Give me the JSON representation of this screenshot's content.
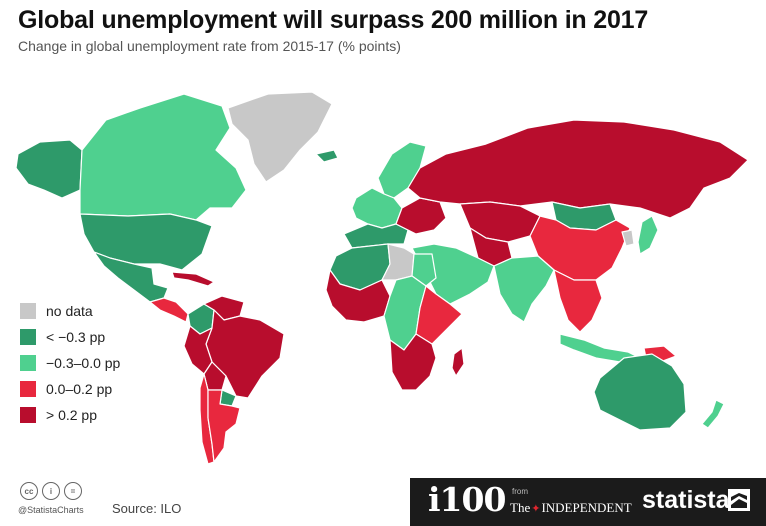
{
  "header": {
    "title": "Global unemployment will surpass 200 million in 2017",
    "subtitle": "Change in global unemployment rate from 2015-17 (% points)"
  },
  "colors": {
    "no_data": "#c8c8c8",
    "lt_neg_0_3": "#2e9a6a",
    "neg_0_3_to_0": "#4fd08f",
    "zero_to_0_2": "#e8283e",
    "gt_0_2": "#b80d2d",
    "ocean": "#ffffff",
    "border": "#ffffff"
  },
  "legend": {
    "items": [
      {
        "label": "no data",
        "color": "#c8c8c8"
      },
      {
        "label": "< −0.3 pp",
        "color": "#2e9a6a"
      },
      {
        "label": "−0.3–0.0 pp",
        "color": "#4fd08f"
      },
      {
        "label": "0.0–0.2 pp",
        "color": "#e8283e"
      },
      {
        "label": "> 0.2 pp",
        "color": "#b80d2d"
      }
    ]
  },
  "regions": [
    {
      "name": "Greenland",
      "category": "no data"
    },
    {
      "name": "Alaska",
      "category": "< −0.3 pp"
    },
    {
      "name": "Canada",
      "category": "−0.3–0.0 pp"
    },
    {
      "name": "United States",
      "category": "< −0.3 pp"
    },
    {
      "name": "Mexico",
      "category": "< −0.3 pp"
    },
    {
      "name": "Central America",
      "category": "0.0–0.2 pp"
    },
    {
      "name": "Caribbean",
      "category": "> 0.2 pp"
    },
    {
      "name": "Colombia",
      "category": "< −0.3 pp"
    },
    {
      "name": "Venezuela",
      "category": "> 0.2 pp"
    },
    {
      "name": "Brazil",
      "category": "> 0.2 pp"
    },
    {
      "name": "Peru",
      "category": "> 0.2 pp"
    },
    {
      "name": "Bolivia",
      "category": "> 0.2 pp"
    },
    {
      "name": "Paraguay",
      "category": "< −0.3 pp"
    },
    {
      "name": "Chile",
      "category": "0.0–0.2 pp"
    },
    {
      "name": "Argentina",
      "category": "0.0–0.2 pp"
    },
    {
      "name": "Iceland",
      "category": "< −0.3 pp"
    },
    {
      "name": "Scandinavia",
      "category": "−0.3–0.0 pp"
    },
    {
      "name": "Western Europe",
      "category": "−0.3–0.0 pp"
    },
    {
      "name": "Southern Europe",
      "category": "< −0.3 pp"
    },
    {
      "name": "Eastern Europe",
      "category": "> 0.2 pp"
    },
    {
      "name": "Russia",
      "category": "> 0.2 pp"
    },
    {
      "name": "Kazakhstan",
      "category": "> 0.2 pp"
    },
    {
      "name": "Mongolia",
      "category": "< −0.3 pp"
    },
    {
      "name": "China",
      "category": "0.0–0.2 pp"
    },
    {
      "name": "Korea",
      "category": "no data"
    },
    {
      "name": "Japan",
      "category": "−0.3–0.0 pp"
    },
    {
      "name": "Central Asia",
      "category": "> 0.2 pp"
    },
    {
      "name": "Middle East",
      "category": "−0.3–0.0 pp"
    },
    {
      "name": "India",
      "category": "−0.3–0.0 pp"
    },
    {
      "name": "Southeast Asia",
      "category": "0.0–0.2 pp"
    },
    {
      "name": "Indonesia",
      "category": "−0.3–0.0 pp"
    },
    {
      "name": "Papua New Guinea",
      "category": "0.0–0.2 pp"
    },
    {
      "name": "Australia",
      "category": "< −0.3 pp"
    },
    {
      "name": "New Zealand",
      "category": "−0.3–0.0 pp"
    },
    {
      "name": "North Africa",
      "category": "< −0.3 pp"
    },
    {
      "name": "Libya",
      "category": "no data"
    },
    {
      "name": "Egypt",
      "category": "−0.3–0.0 pp"
    },
    {
      "name": "West Africa",
      "category": "> 0.2 pp"
    },
    {
      "name": "Central Africa",
      "category": "−0.3–0.0 pp"
    },
    {
      "name": "East Africa",
      "category": "0.0–0.2 pp"
    },
    {
      "name": "Southern Africa",
      "category": "> 0.2 pp"
    },
    {
      "name": "Madagascar",
      "category": "> 0.2 pp"
    }
  ],
  "footer": {
    "cc_marks": [
      "cc",
      "i",
      "="
    ],
    "handle": "@StatistaCharts",
    "source": "Source: ILO",
    "i100": "i100",
    "from": "from",
    "the": "The",
    "independent": "INDEPENDENT",
    "statista": "statista"
  }
}
